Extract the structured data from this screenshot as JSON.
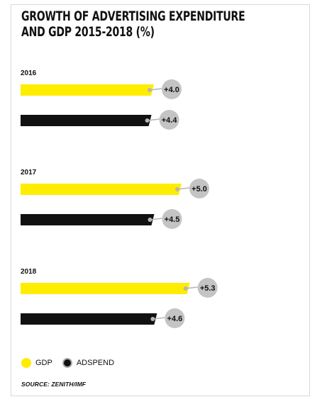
{
  "chart_data": {
    "type": "bar",
    "orientation": "horizontal",
    "title_lines": [
      "GROWTH OF ADVERTISING EXPENDITURE",
      "AND GDP 2015-2018 (%)"
    ],
    "categories": [
      "2016",
      "2017",
      "2018"
    ],
    "series": [
      {
        "name": "GDP",
        "color": "#ffed00",
        "values": [
          4.0,
          5.0,
          5.3
        ],
        "labels": [
          "+4.0",
          "+5.0",
          "+5.3"
        ]
      },
      {
        "name": "ADSPEND",
        "color": "#111111",
        "values": [
          4.4,
          4.5,
          4.6
        ],
        "labels": [
          "+4.4",
          "+4.5",
          "+4.6"
        ]
      }
    ],
    "legend": "bottom-left",
    "grid": false
  },
  "source": "SOURCE: ZENITH/IMF"
}
